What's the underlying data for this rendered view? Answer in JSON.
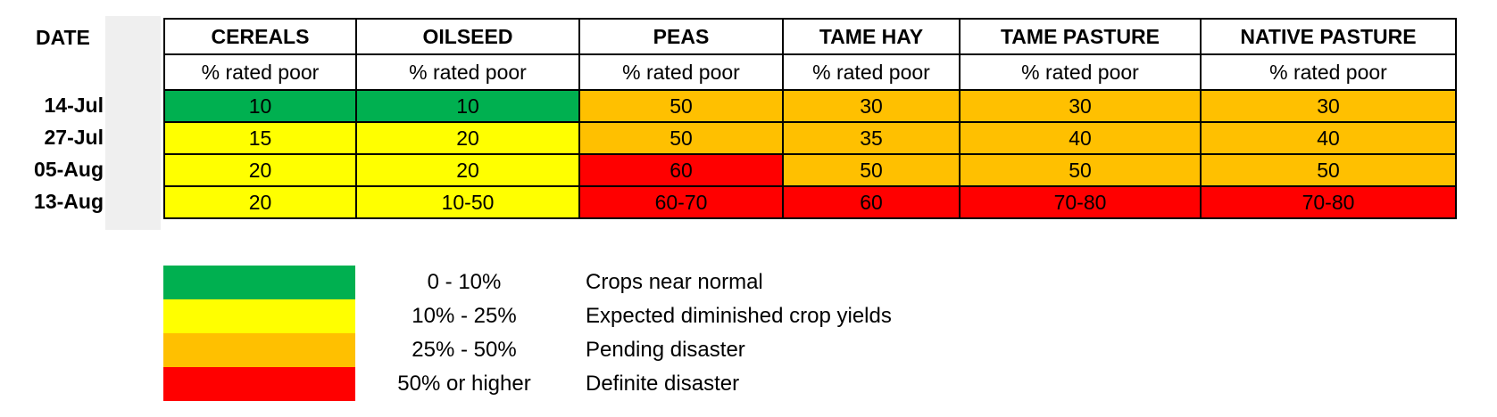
{
  "colors": {
    "green": "#00b050",
    "yellow": "#ffff00",
    "orange": "#ffc000",
    "red": "#ff0000"
  },
  "chart_data": {
    "type": "table",
    "date_header": "DATE",
    "columns": [
      "CEREALS",
      "OILSEED",
      "PEAS",
      "TAME HAY",
      "TAME PASTURE",
      "NATIVE PASTURE"
    ],
    "subheader": "% rated poor",
    "rows": [
      {
        "date": "14-Jul",
        "values": [
          "10",
          "10",
          "50",
          "30",
          "30",
          "30"
        ],
        "levels": [
          "green",
          "green",
          "orange",
          "orange",
          "orange",
          "orange"
        ]
      },
      {
        "date": "27-Jul",
        "values": [
          "15",
          "20",
          "50",
          "35",
          "40",
          "40"
        ],
        "levels": [
          "yellow",
          "yellow",
          "orange",
          "orange",
          "orange",
          "orange"
        ]
      },
      {
        "date": "05-Aug",
        "values": [
          "20",
          "20",
          "60",
          "50",
          "50",
          "50"
        ],
        "levels": [
          "yellow",
          "yellow",
          "red",
          "orange",
          "orange",
          "orange"
        ]
      },
      {
        "date": "13-Aug",
        "values": [
          "20",
          "10-50",
          "60-70",
          "60",
          "70-80",
          "70-80"
        ],
        "levels": [
          "yellow",
          "yellow",
          "red",
          "red",
          "red",
          "red"
        ]
      }
    ],
    "legend": [
      {
        "level": "green",
        "range": "0 - 10%",
        "description": "Crops near normal"
      },
      {
        "level": "yellow",
        "range": "10% - 25%",
        "description": "Expected diminished crop yields"
      },
      {
        "level": "orange",
        "range": "25% - 50%",
        "description": "Pending disaster"
      },
      {
        "level": "red",
        "range": "50% or higher",
        "description": "Definite disaster"
      }
    ]
  }
}
